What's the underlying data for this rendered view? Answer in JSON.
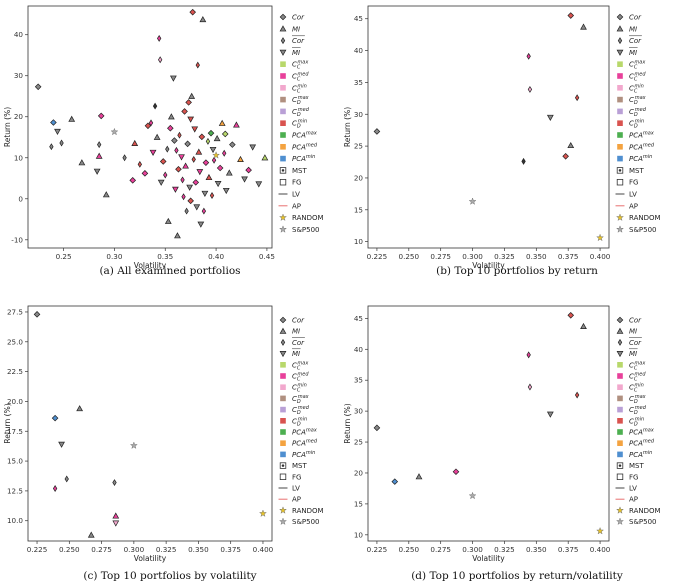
{
  "legend": {
    "entries": [
      {
        "label": "Cor",
        "sym": "D",
        "color": "#888888",
        "over": false
      },
      {
        "label": "MI",
        "sym": "^",
        "color": "#888888",
        "over": false
      },
      {
        "label": "Cor",
        "sym": "d",
        "color": "#888888",
        "over": true
      },
      {
        "label": "MI",
        "sym": "v",
        "color": "#888888",
        "over": true
      },
      {
        "label": "C",
        "sup": "max",
        "sub": "C",
        "color": "#b8d86b",
        "sym": "s"
      },
      {
        "label": "C",
        "sup": "med",
        "sub": "C",
        "color": "#e8409a",
        "sym": "s"
      },
      {
        "label": "C",
        "sup": "min",
        "sub": "C",
        "color": "#f2a8cd",
        "sym": "s"
      },
      {
        "label": "C",
        "sup": "max",
        "sub": "D",
        "color": "#b09080",
        "sym": "s"
      },
      {
        "label": "C",
        "sup": "med",
        "sub": "D",
        "color": "#b9a0d6",
        "sym": "s"
      },
      {
        "label": "C",
        "sup": "min",
        "sub": "D",
        "color": "#d9534f",
        "sym": "s"
      },
      {
        "label": "PCA",
        "sup": "max",
        "color": "#4caf50",
        "sym": "s"
      },
      {
        "label": "PCA",
        "sup": "med",
        "color": "#f4a340",
        "sym": "s"
      },
      {
        "label": "PCA",
        "sup": "min",
        "color": "#4f8fd0",
        "sym": "s"
      },
      {
        "label": "MST",
        "sym": "sqdot",
        "color": "#333333"
      },
      {
        "label": "FG",
        "sym": "sqo",
        "color": "#333333"
      },
      {
        "label": "LV",
        "sym": "line",
        "color": "#444444"
      },
      {
        "label": "AP",
        "sym": "line",
        "color": "#e87070"
      },
      {
        "label": "RANDOM",
        "sym": "*",
        "color": "#e6c229"
      },
      {
        "label": "S&P500",
        "sym": "*",
        "color": "#aaaaaa"
      }
    ]
  },
  "chart_data": [
    {
      "type": "scatter",
      "caption": "(a) All examined portfolios",
      "xlabel": "Volatility",
      "ylabel": "Return (%)",
      "xlim": [
        0.215,
        0.455
      ],
      "ylim": [
        -12,
        47
      ],
      "xticks": [
        "0.25",
        "0.30",
        "0.35",
        "0.40",
        "0.45"
      ],
      "xtick_values": [
        0.25,
        0.3,
        0.35,
        0.4,
        0.45
      ],
      "yticks": [
        "-10",
        "0",
        "10",
        "20",
        "30",
        "40"
      ],
      "ytick_values": [
        -10,
        0,
        10,
        20,
        30,
        40
      ],
      "points": [
        {
          "x": 0.225,
          "y": 27.3,
          "s": "D",
          "c": "#888888"
        },
        {
          "x": 0.24,
          "y": 18.6,
          "s": "D",
          "c": "#4f8fd0"
        },
        {
          "x": 0.244,
          "y": 16.4,
          "s": "v",
          "c": "#888888"
        },
        {
          "x": 0.238,
          "y": 12.7,
          "s": "d",
          "c": "#888888"
        },
        {
          "x": 0.248,
          "y": 13.6,
          "s": "d",
          "c": "#888888"
        },
        {
          "x": 0.258,
          "y": 19.4,
          "s": "^",
          "c": "#888888"
        },
        {
          "x": 0.268,
          "y": 8.8,
          "s": "^",
          "c": "#888888"
        },
        {
          "x": 0.285,
          "y": 13.2,
          "s": "d",
          "c": "#888888"
        },
        {
          "x": 0.285,
          "y": 10.4,
          "s": "^",
          "c": "#e8409a"
        },
        {
          "x": 0.287,
          "y": 20.2,
          "s": "D",
          "c": "#e8409a"
        },
        {
          "x": 0.3,
          "y": 16.3,
          "s": "*",
          "c": "#aaaaaa"
        },
        {
          "x": 0.283,
          "y": 6.7,
          "s": "v",
          "c": "#888888"
        },
        {
          "x": 0.292,
          "y": 1.0,
          "s": "^",
          "c": "#888888"
        },
        {
          "x": 0.31,
          "y": 10.0,
          "s": "d",
          "c": "#888888"
        },
        {
          "x": 0.318,
          "y": 4.5,
          "s": "D",
          "c": "#e8409a"
        },
        {
          "x": 0.32,
          "y": 13.5,
          "s": "^",
          "c": "#d9534f"
        },
        {
          "x": 0.325,
          "y": 8.4,
          "s": "d",
          "c": "#d9534f"
        },
        {
          "x": 0.33,
          "y": 6.2,
          "s": "D",
          "c": "#e8409a"
        },
        {
          "x": 0.333,
          "y": 17.8,
          "s": "D",
          "c": "#d9534f"
        },
        {
          "x": 0.338,
          "y": 11.3,
          "s": "v",
          "c": "#e8409a"
        },
        {
          "x": 0.34,
          "y": 22.6,
          "s": "d",
          "c": "#333333"
        },
        {
          "x": 0.342,
          "y": 15.0,
          "s": "^",
          "c": "#888888"
        },
        {
          "x": 0.344,
          "y": 39.1,
          "s": "d",
          "c": "#e8409a"
        },
        {
          "x": 0.345,
          "y": 33.9,
          "s": "d",
          "c": "#f2a8cd"
        },
        {
          "x": 0.346,
          "y": 4.0,
          "s": "v",
          "c": "#888888"
        },
        {
          "x": 0.348,
          "y": 9.1,
          "s": "D",
          "c": "#d9534f"
        },
        {
          "x": 0.35,
          "y": 5.8,
          "s": "d",
          "c": "#e8409a"
        },
        {
          "x": 0.352,
          "y": 12.1,
          "s": "d",
          "c": "#888888"
        },
        {
          "x": 0.355,
          "y": 17.2,
          "s": "D",
          "c": "#e8409a"
        },
        {
          "x": 0.356,
          "y": 20.0,
          "s": "^",
          "c": "#888888"
        },
        {
          "x": 0.358,
          "y": 29.4,
          "s": "v",
          "c": "#888888"
        },
        {
          "x": 0.36,
          "y": 2.3,
          "s": "v",
          "c": "#e8409a"
        },
        {
          "x": 0.361,
          "y": 11.8,
          "s": "d",
          "c": "#e8409a"
        },
        {
          "x": 0.362,
          "y": -9.0,
          "s": "^",
          "c": "#888888"
        },
        {
          "x": 0.363,
          "y": 7.2,
          "s": "D",
          "c": "#d9534f"
        },
        {
          "x": 0.364,
          "y": 15.5,
          "s": "d",
          "c": "#d9534f"
        },
        {
          "x": 0.366,
          "y": 10.2,
          "s": "v",
          "c": "#e8409a"
        },
        {
          "x": 0.367,
          "y": 4.6,
          "s": "d",
          "c": "#e8409a"
        },
        {
          "x": 0.369,
          "y": 21.3,
          "s": "D",
          "c": "#d9534f"
        },
        {
          "x": 0.37,
          "y": 8.0,
          "s": "^",
          "c": "#e8409a"
        },
        {
          "x": 0.371,
          "y": -3.0,
          "s": "d",
          "c": "#888888"
        },
        {
          "x": 0.372,
          "y": 13.4,
          "s": "D",
          "c": "#888888"
        },
        {
          "x": 0.373,
          "y": 23.5,
          "s": "D",
          "c": "#d9534f"
        },
        {
          "x": 0.374,
          "y": 2.8,
          "s": "v",
          "c": "#888888"
        },
        {
          "x": 0.375,
          "y": -0.5,
          "s": "D",
          "c": "#d9534f"
        },
        {
          "x": 0.376,
          "y": 25.0,
          "s": "^",
          "c": "#888888"
        },
        {
          "x": 0.377,
          "y": 45.5,
          "s": "D",
          "c": "#d9534f"
        },
        {
          "x": 0.378,
          "y": 9.6,
          "s": "d",
          "c": "#d9534f"
        },
        {
          "x": 0.379,
          "y": 17.0,
          "s": "v",
          "c": "#d9534f"
        },
        {
          "x": 0.38,
          "y": 4.0,
          "s": "D",
          "c": "#e8409a"
        },
        {
          "x": 0.381,
          "y": -2.0,
          "s": "v",
          "c": "#888888"
        },
        {
          "x": 0.382,
          "y": 32.6,
          "s": "d",
          "c": "#d9534f"
        },
        {
          "x": 0.383,
          "y": 11.4,
          "s": "^",
          "c": "#d9534f"
        },
        {
          "x": 0.384,
          "y": 6.6,
          "s": "v",
          "c": "#e8409a"
        },
        {
          "x": 0.386,
          "y": 15.1,
          "s": "D",
          "c": "#d9534f"
        },
        {
          "x": 0.387,
          "y": 43.7,
          "s": "^",
          "c": "#888888"
        },
        {
          "x": 0.388,
          "y": -3.0,
          "s": "d",
          "c": "#e8409a"
        },
        {
          "x": 0.389,
          "y": 1.3,
          "s": "v",
          "c": "#888888"
        },
        {
          "x": 0.39,
          "y": 8.8,
          "s": "D",
          "c": "#e8409a"
        },
        {
          "x": 0.392,
          "y": 14.0,
          "s": "d",
          "c": "#b8d86b"
        },
        {
          "x": 0.393,
          "y": 5.2,
          "s": "^",
          "c": "#d9534f"
        },
        {
          "x": 0.395,
          "y": 16.0,
          "s": "D",
          "c": "#4caf50"
        },
        {
          "x": 0.397,
          "y": 12.0,
          "s": "v",
          "c": "#888888"
        },
        {
          "x": 0.398,
          "y": 9.4,
          "s": "d",
          "c": "#e8409a"
        },
        {
          "x": 0.4,
          "y": 10.6,
          "s": "*",
          "c": "#e6c229"
        },
        {
          "x": 0.401,
          "y": 14.7,
          "s": "^",
          "c": "#888888"
        },
        {
          "x": 0.402,
          "y": 3.7,
          "s": "v",
          "c": "#888888"
        },
        {
          "x": 0.404,
          "y": 7.5,
          "s": "D",
          "c": "#e8409a"
        },
        {
          "x": 0.406,
          "y": 18.4,
          "s": "^",
          "c": "#f4a340"
        },
        {
          "x": 0.408,
          "y": 11.1,
          "s": "d",
          "c": "#e8409a"
        },
        {
          "x": 0.41,
          "y": 2.0,
          "s": "v",
          "c": "#888888"
        },
        {
          "x": 0.413,
          "y": 6.3,
          "s": "^",
          "c": "#888888"
        },
        {
          "x": 0.416,
          "y": 13.2,
          "s": "D",
          "c": "#888888"
        },
        {
          "x": 0.42,
          "y": 18.0,
          "s": "^",
          "c": "#e8409a"
        },
        {
          "x": 0.424,
          "y": 9.6,
          "s": "^",
          "c": "#f4a340"
        },
        {
          "x": 0.428,
          "y": 4.8,
          "s": "v",
          "c": "#888888"
        },
        {
          "x": 0.432,
          "y": 7.0,
          "s": "D",
          "c": "#e8409a"
        },
        {
          "x": 0.436,
          "y": 12.6,
          "s": "v",
          "c": "#888888"
        },
        {
          "x": 0.442,
          "y": 3.6,
          "s": "v",
          "c": "#888888"
        },
        {
          "x": 0.448,
          "y": 10.0,
          "s": "^",
          "c": "#b8d86b"
        },
        {
          "x": 0.336,
          "y": 18.5,
          "s": "d",
          "c": "#e8409a"
        },
        {
          "x": 0.353,
          "y": -5.5,
          "s": "^",
          "c": "#888888"
        },
        {
          "x": 0.359,
          "y": 14.2,
          "s": "D",
          "c": "#888888"
        },
        {
          "x": 0.368,
          "y": 0.5,
          "s": "d",
          "c": "#e8409a"
        },
        {
          "x": 0.375,
          "y": 19.4,
          "s": "v",
          "c": "#d9534f"
        },
        {
          "x": 0.385,
          "y": -6.2,
          "s": "v",
          "c": "#888888"
        },
        {
          "x": 0.396,
          "y": 0.8,
          "s": "d",
          "c": "#d9534f"
        },
        {
          "x": 0.409,
          "y": 15.8,
          "s": "D",
          "c": "#b8d86b"
        }
      ]
    },
    {
      "type": "scatter",
      "caption": "(b) Top 10 portfolios by return",
      "xlabel": "Volatility",
      "ylabel": "Return (%)",
      "xlim": [
        0.218,
        0.407
      ],
      "ylim": [
        9,
        47
      ],
      "xticks": [
        "0.225",
        "0.250",
        "0.275",
        "0.300",
        "0.325",
        "0.350",
        "0.375",
        "0.400"
      ],
      "xtick_values": [
        0.225,
        0.25,
        0.275,
        0.3,
        0.325,
        0.35,
        0.375,
        0.4
      ],
      "yticks": [
        "10",
        "15",
        "20",
        "25",
        "30",
        "35",
        "40",
        "45"
      ],
      "ytick_values": [
        10,
        15,
        20,
        25,
        30,
        35,
        40,
        45
      ],
      "points": [
        {
          "x": 0.225,
          "y": 27.3,
          "s": "D",
          "c": "#888888"
        },
        {
          "x": 0.3,
          "y": 16.3,
          "s": "*",
          "c": "#aaaaaa"
        },
        {
          "x": 0.34,
          "y": 22.6,
          "s": "d",
          "c": "#333333"
        },
        {
          "x": 0.344,
          "y": 39.1,
          "s": "d",
          "c": "#e8409a"
        },
        {
          "x": 0.345,
          "y": 33.9,
          "s": "d",
          "c": "#f2a8cd"
        },
        {
          "x": 0.361,
          "y": 29.5,
          "s": "v",
          "c": "#888888"
        },
        {
          "x": 0.373,
          "y": 23.4,
          "s": "D",
          "c": "#d9534f"
        },
        {
          "x": 0.377,
          "y": 45.5,
          "s": "D",
          "c": "#d9534f"
        },
        {
          "x": 0.377,
          "y": 25.1,
          "s": "^",
          "c": "#888888"
        },
        {
          "x": 0.382,
          "y": 32.6,
          "s": "d",
          "c": "#d9534f"
        },
        {
          "x": 0.387,
          "y": 43.7,
          "s": "^",
          "c": "#888888"
        },
        {
          "x": 0.4,
          "y": 10.6,
          "s": "*",
          "c": "#e6c229"
        }
      ]
    },
    {
      "type": "scatter",
      "caption": "(c) Top 10 portfolios by volatility",
      "xlabel": "Volatility",
      "ylabel": "Return (%)",
      "xlim": [
        0.218,
        0.407
      ],
      "ylim": [
        8.3,
        28
      ],
      "xticks": [
        "0.225",
        "0.250",
        "0.275",
        "0.300",
        "0.325",
        "0.350",
        "0.375",
        "0.400"
      ],
      "xtick_values": [
        0.225,
        0.25,
        0.275,
        0.3,
        0.325,
        0.35,
        0.375,
        0.4
      ],
      "yticks": [
        "10.0",
        "12.5",
        "15.0",
        "17.5",
        "20.0",
        "22.5",
        "25.0",
        "27.5"
      ],
      "ytick_values": [
        10,
        12.5,
        15,
        17.5,
        20,
        22.5,
        25,
        27.5
      ],
      "points": [
        {
          "x": 0.225,
          "y": 27.3,
          "s": "D",
          "c": "#888888"
        },
        {
          "x": 0.239,
          "y": 18.6,
          "s": "D",
          "c": "#4f8fd0"
        },
        {
          "x": 0.244,
          "y": 16.4,
          "s": "v",
          "c": "#888888"
        },
        {
          "x": 0.258,
          "y": 19.4,
          "s": "^",
          "c": "#888888"
        },
        {
          "x": 0.239,
          "y": 12.7,
          "s": "d",
          "c": "#e8409a"
        },
        {
          "x": 0.248,
          "y": 13.5,
          "s": "d",
          "c": "#888888"
        },
        {
          "x": 0.267,
          "y": 8.8,
          "s": "^",
          "c": "#888888"
        },
        {
          "x": 0.285,
          "y": 13.2,
          "s": "d",
          "c": "#888888"
        },
        {
          "x": 0.286,
          "y": 10.4,
          "s": "^",
          "c": "#e8409a"
        },
        {
          "x": 0.286,
          "y": 9.8,
          "s": "v",
          "c": "#f2a8cd"
        },
        {
          "x": 0.3,
          "y": 16.3,
          "s": "*",
          "c": "#aaaaaa"
        },
        {
          "x": 0.4,
          "y": 10.6,
          "s": "*",
          "c": "#e6c229"
        }
      ]
    },
    {
      "type": "scatter",
      "caption": "(d) Top 10 portfolios by return/volatility",
      "xlabel": "Volatility",
      "ylabel": "Return (%)",
      "xlim": [
        0.218,
        0.407
      ],
      "ylim": [
        9,
        47
      ],
      "xticks": [
        "0.225",
        "0.250",
        "0.275",
        "0.300",
        "0.325",
        "0.350",
        "0.375",
        "0.400"
      ],
      "xtick_values": [
        0.225,
        0.25,
        0.275,
        0.3,
        0.325,
        0.35,
        0.375,
        0.4
      ],
      "yticks": [
        "10",
        "15",
        "20",
        "25",
        "30",
        "35",
        "40",
        "45"
      ],
      "ytick_values": [
        10,
        15,
        20,
        25,
        30,
        35,
        40,
        45
      ],
      "points": [
        {
          "x": 0.225,
          "y": 27.3,
          "s": "D",
          "c": "#888888"
        },
        {
          "x": 0.239,
          "y": 18.6,
          "s": "D",
          "c": "#4f8fd0"
        },
        {
          "x": 0.258,
          "y": 19.4,
          "s": "^",
          "c": "#888888"
        },
        {
          "x": 0.287,
          "y": 20.2,
          "s": "D",
          "c": "#e8409a"
        },
        {
          "x": 0.3,
          "y": 16.3,
          "s": "*",
          "c": "#aaaaaa"
        },
        {
          "x": 0.344,
          "y": 39.1,
          "s": "d",
          "c": "#e8409a"
        },
        {
          "x": 0.345,
          "y": 33.9,
          "s": "d",
          "c": "#f2a8cd"
        },
        {
          "x": 0.361,
          "y": 29.5,
          "s": "v",
          "c": "#888888"
        },
        {
          "x": 0.377,
          "y": 45.5,
          "s": "D",
          "c": "#d9534f"
        },
        {
          "x": 0.382,
          "y": 32.6,
          "s": "d",
          "c": "#d9534f"
        },
        {
          "x": 0.387,
          "y": 43.7,
          "s": "^",
          "c": "#888888"
        },
        {
          "x": 0.4,
          "y": 10.6,
          "s": "*",
          "c": "#e6c229"
        }
      ]
    }
  ]
}
